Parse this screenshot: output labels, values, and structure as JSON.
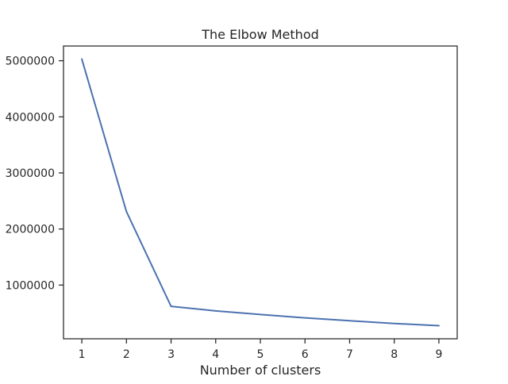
{
  "chart_data": {
    "type": "line",
    "title": "The Elbow Method",
    "xlabel": "Number of clusters",
    "ylabel": "",
    "x": [
      1,
      2,
      3,
      4,
      5,
      6,
      7,
      8,
      9
    ],
    "series": [
      {
        "values": [
          5030000,
          2310000,
          620000,
          540000,
          475000,
          415000,
          365000,
          315000,
          275000
        ],
        "color": "#4c72b0"
      }
    ],
    "xlim": [
      0.59,
      9.41
    ],
    "ylim": [
      42250,
      5262750
    ],
    "xticks": [
      1,
      2,
      3,
      4,
      5,
      6,
      7,
      8,
      9
    ],
    "yticks": [
      1000000,
      2000000,
      3000000,
      4000000,
      5000000
    ],
    "ytick_labels": [
      "1000000",
      "2000000",
      "3000000",
      "4000000",
      "5000000"
    ],
    "xtick_labels": [
      "1",
      "2",
      "3",
      "4",
      "5",
      "6",
      "7",
      "8",
      "9"
    ],
    "grid": false,
    "legend": "none"
  }
}
